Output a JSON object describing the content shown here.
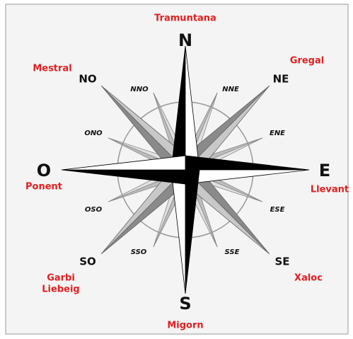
{
  "points": [
    {
      "label": "N",
      "wind": [
        "Tramuntana"
      ]
    },
    {
      "label": "NE",
      "wind": [
        "Gregal"
      ]
    },
    {
      "label": "E",
      "wind": [
        "Llevant"
      ]
    },
    {
      "label": "SE",
      "wind": [
        "Xaloc"
      ]
    },
    {
      "label": "S",
      "wind": [
        "Migorn"
      ]
    },
    {
      "label": "SO",
      "wind": [
        "Garbi",
        "Liebeig"
      ]
    },
    {
      "label": "O",
      "wind": [
        "Ponent"
      ]
    },
    {
      "label": "NO",
      "wind": [
        "Mestral"
      ]
    }
  ],
  "intermediate": [
    "NNE",
    "ENE",
    "ESE",
    "SSE",
    "SSO",
    "OSO",
    "ONO",
    "NNO"
  ]
}
